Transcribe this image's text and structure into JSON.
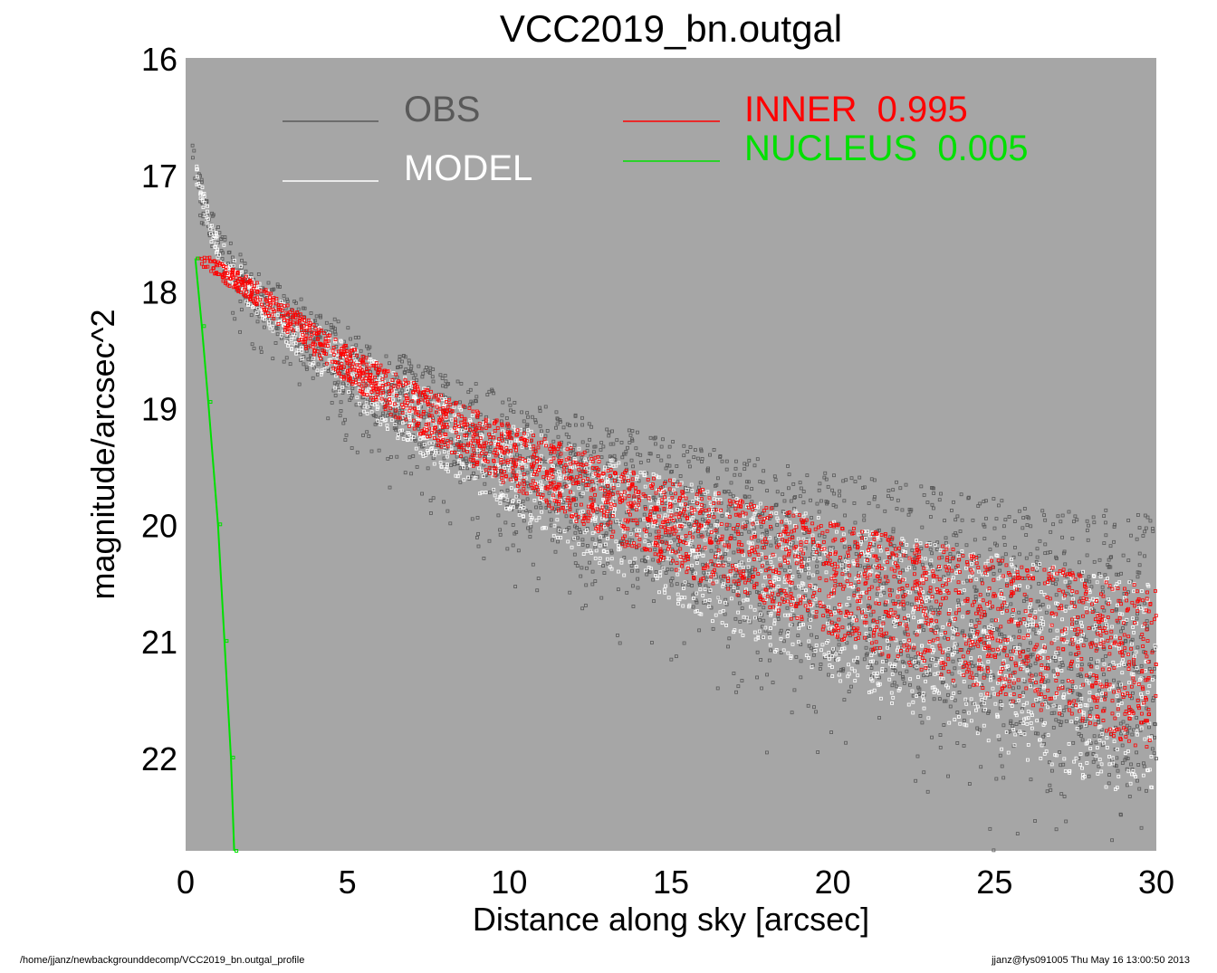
{
  "chart_data": {
    "type": "scatter",
    "title": "VCC2019_bn.outgal",
    "xlabel": "Distance along sky [arcsec]",
    "ylabel": "magnitude/arcsec^2",
    "xlim": [
      0,
      30
    ],
    "ylim": [
      22.8,
      16
    ],
    "y_inverted": true,
    "xticks": [
      0,
      5,
      10,
      15,
      20,
      25,
      30
    ],
    "yticks": [
      16,
      17,
      18,
      19,
      20,
      21,
      22
    ],
    "grid": false,
    "background": "#a6a6a6",
    "legend": [
      {
        "label": "OBS",
        "color": "#595959"
      },
      {
        "label": "MODEL",
        "color": "#ffffff"
      },
      {
        "label": "INNER  0.995",
        "color": "#ff0000"
      },
      {
        "label": "NUCLEUS  0.005",
        "color": "#00e000"
      }
    ],
    "series": [
      {
        "name": "OBS",
        "color": "#595959",
        "x": [
          0.2,
          0.4,
          0.6,
          0.8,
          1.0,
          1.5,
          2,
          3,
          4,
          5,
          6,
          7,
          8,
          9,
          10,
          12,
          14,
          16,
          18,
          20,
          22,
          24,
          26,
          28,
          30
        ],
        "y": [
          16.85,
          17.0,
          17.25,
          17.45,
          17.6,
          17.8,
          17.95,
          18.2,
          18.4,
          18.6,
          18.78,
          18.95,
          19.1,
          19.23,
          19.36,
          19.6,
          19.82,
          20.02,
          20.2,
          20.37,
          20.53,
          20.68,
          20.82,
          20.96,
          21.1
        ]
      },
      {
        "name": "MODEL",
        "color": "#ffffff",
        "x": [
          0.2,
          0.4,
          0.6,
          0.8,
          1.0,
          1.5,
          2,
          3,
          4,
          5,
          6,
          7,
          8,
          9,
          10,
          12,
          14,
          16,
          18,
          20,
          22,
          24,
          26,
          28,
          30
        ],
        "y": [
          16.85,
          17.0,
          17.25,
          17.45,
          17.6,
          17.8,
          17.95,
          18.2,
          18.4,
          18.6,
          18.78,
          18.95,
          19.1,
          19.23,
          19.36,
          19.6,
          19.82,
          20.02,
          20.2,
          20.37,
          20.53,
          20.68,
          20.82,
          20.96,
          21.1
        ]
      },
      {
        "name": "INNER",
        "color": "#ff0000",
        "x": [
          0.4,
          1,
          2,
          3,
          4,
          5,
          6,
          7,
          8,
          9,
          10,
          12,
          14,
          16,
          18,
          20,
          22,
          24,
          26,
          28,
          30
        ],
        "y": [
          17.72,
          17.82,
          17.98,
          18.21,
          18.42,
          18.62,
          18.81,
          18.98,
          19.13,
          19.27,
          19.41,
          19.66,
          19.89,
          20.1,
          20.29,
          20.47,
          20.64,
          20.8,
          20.95,
          21.1,
          21.25
        ]
      },
      {
        "name": "NUCLEUS",
        "color": "#00e000",
        "x": [
          0.3,
          0.5,
          0.7,
          1.0,
          1.2,
          1.4,
          1.5
        ],
        "y": [
          17.72,
          18.3,
          18.95,
          20.0,
          21.0,
          22.0,
          22.8
        ]
      }
    ]
  },
  "footer": {
    "left": "/home/jjanz/newbackgrounddecomp/VCC2019_bn.outgal_profile",
    "right": "jjanz@fys091005  Thu May 16 13:00:50 2013"
  }
}
